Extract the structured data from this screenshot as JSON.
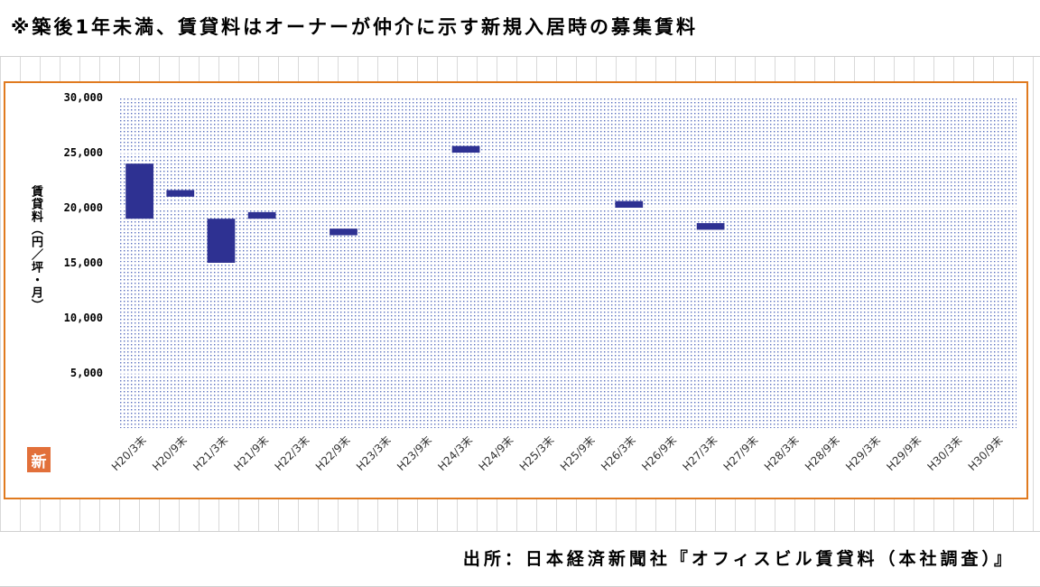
{
  "header": {
    "title": "※築後1年未満、賃貸料はオーナーが仲介に示す新規入居時の募集賃料"
  },
  "footer": {
    "source": "出所：日本経済新聞社『オフィスビル賃貸料（本社調査）』"
  },
  "logo": {
    "text": "新"
  },
  "chart_data": {
    "type": "bar",
    "subtype": "floating-range",
    "title": "",
    "xlabel": "",
    "ylabel": "賃貸料（円／坪・月）",
    "ylim": [
      0,
      30000
    ],
    "yticks": [
      5000,
      10000,
      15000,
      20000,
      25000,
      30000
    ],
    "ytick_labels": [
      "5,000",
      "10,000",
      "15,000",
      "20,000",
      "25,000",
      "30,000"
    ],
    "grid": true,
    "legend": "none",
    "categories": [
      "H20/3末",
      "H20/9末",
      "H21/3末",
      "H21/9末",
      "H22/3末",
      "H22/9末",
      "H23/3末",
      "H23/9末",
      "H24/3末",
      "H24/9末",
      "H25/3末",
      "H25/9末",
      "H26/3末",
      "H26/9末",
      "H27/3末",
      "H27/9末",
      "H28/3末",
      "H28/9末",
      "H29/3末",
      "H29/9末",
      "H30/3末",
      "H30/9末"
    ],
    "ranges": [
      [
        19000,
        24000
      ],
      [
        21000,
        21600
      ],
      [
        15000,
        19000
      ],
      [
        19000,
        19600
      ],
      null,
      [
        17500,
        18100
      ],
      null,
      null,
      [
        25000,
        25600
      ],
      null,
      null,
      null,
      [
        20000,
        20600
      ],
      null,
      [
        18000,
        18600
      ],
      null,
      null,
      null,
      null,
      null,
      null,
      null
    ],
    "bar_color": "#2e3192",
    "plot_fill": "#dde3f5",
    "grid_color": "#ffffff"
  }
}
